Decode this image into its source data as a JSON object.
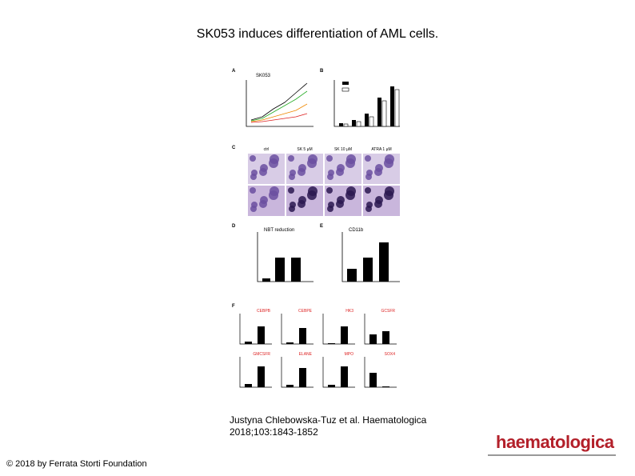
{
  "title": "SK053 induces differentiation of AML cells.",
  "figure": {
    "panel_labels": [
      "A",
      "B",
      "C",
      "D",
      "E",
      "F"
    ],
    "panel_a_title": "SK053",
    "panel_d_title": "NBT reduction",
    "panel_e_title": "CD11b",
    "panel_c_columns": [
      "ctrl",
      "SK 5 µM",
      "SK 10 µM",
      "ATRA 1 µM"
    ],
    "panel_f_genes": [
      "CEBPB",
      "CEBPE",
      "HK3",
      "GCSFR",
      "GMCSFR",
      "ELANE",
      "MPO",
      "SOX4"
    ]
  },
  "citation": [
    "Justyna Chlebowska-Tuz et al. Haematologica",
    "2018;103:1843-1852"
  ],
  "copyright": "© 2018 by Ferrata Storti Foundation",
  "logo": "haematologica"
}
